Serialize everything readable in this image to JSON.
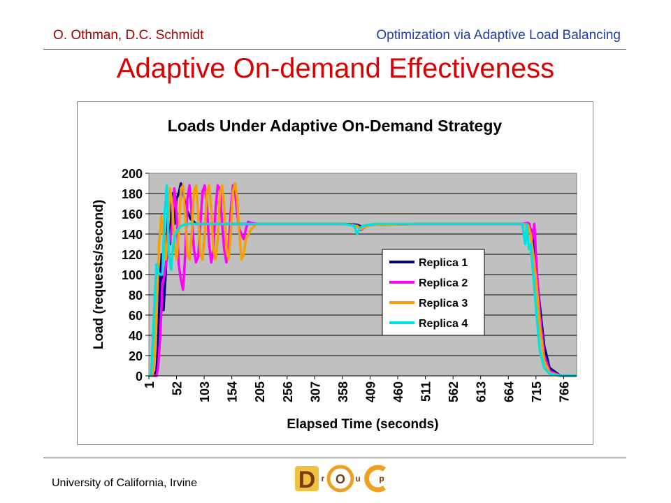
{
  "header": {
    "authors": "O. Othman, D.C. Schmidt",
    "topic": "Optimization via Adaptive Load Balancing"
  },
  "slide_title": "Adaptive On-demand Effectiveness",
  "footer": {
    "institution": "University of California, Irvine",
    "logo_letters": [
      "D",
      "r",
      "O",
      "u",
      "C",
      "p"
    ]
  },
  "colors": {
    "author_text": "#a00000",
    "topic_text": "#1f3f9f",
    "title_text": "#d80000",
    "plot_area": "#c0c0c0",
    "replica1": "#000080",
    "replica2": "#ff00ff",
    "replica3": "#f5a000",
    "replica4": "#00e0e0"
  },
  "chart_data": {
    "type": "line",
    "title": "Loads Under Adaptive On-Demand Strategy",
    "xlabel": "Elapsed Time (seconds)",
    "ylabel": "Load (requests/second)",
    "ylim": [
      0,
      200
    ],
    "xlim": [
      1,
      790
    ],
    "yticks": [
      0,
      20,
      40,
      60,
      80,
      100,
      120,
      140,
      160,
      180,
      200
    ],
    "xticks": [
      1,
      52,
      103,
      154,
      205,
      256,
      307,
      358,
      409,
      460,
      511,
      562,
      613,
      664,
      715,
      766
    ],
    "grid": "horizontal",
    "legend": "inside-right",
    "series": [
      {
        "name": "Replica 1",
        "x": [
          1,
          10,
          15,
          18,
          22,
          25,
          28,
          32,
          36,
          40,
          44,
          48,
          52,
          56,
          60,
          64,
          70,
          78,
          88,
          100,
          120,
          150,
          180,
          200,
          260,
          360,
          385,
          395,
          410,
          500,
          600,
          690,
          700,
          705,
          712,
          720,
          730,
          740,
          760,
          790
        ],
        "y": [
          0,
          0,
          5,
          30,
          100,
          120,
          65,
          100,
          160,
          130,
          180,
          150,
          175,
          180,
          190,
          180,
          165,
          155,
          150,
          150,
          150,
          150,
          150,
          150,
          150,
          150,
          149,
          147,
          149,
          150,
          150,
          150,
          149,
          145,
          130,
          80,
          30,
          8,
          0,
          0
        ]
      },
      {
        "name": "Replica 2",
        "x": [
          1,
          15,
          18,
          22,
          26,
          30,
          35,
          40,
          44,
          48,
          52,
          56,
          60,
          64,
          68,
          72,
          76,
          80,
          84,
          88,
          92,
          96,
          100,
          104,
          108,
          112,
          116,
          120,
          124,
          128,
          132,
          136,
          140,
          144,
          148,
          152,
          156,
          160,
          164,
          168,
          172,
          176,
          180,
          184,
          190,
          200,
          220,
          260,
          360,
          385,
          392,
          400,
          410,
          500,
          600,
          690,
          700,
          703,
          708,
          712,
          716,
          722,
          730,
          740,
          760,
          790
        ],
        "y": [
          0,
          0,
          8,
          40,
          90,
          100,
          120,
          135,
          150,
          185,
          160,
          110,
          95,
          85,
          120,
          175,
          188,
          160,
          125,
          112,
          118,
          150,
          182,
          188,
          170,
          130,
          112,
          125,
          165,
          188,
          185,
          150,
          125,
          112,
          125,
          162,
          188,
          182,
          160,
          145,
          140,
          135,
          145,
          152,
          151,
          150,
          150,
          150,
          150,
          148,
          144,
          147,
          149,
          150,
          150,
          150,
          151,
          150,
          135,
          150,
          110,
          60,
          20,
          5,
          0,
          0
        ]
      },
      {
        "name": "Replica 3",
        "x": [
          1,
          8,
          12,
          16,
          20,
          24,
          28,
          32,
          36,
          40,
          44,
          48,
          52,
          56,
          60,
          64,
          68,
          72,
          76,
          80,
          84,
          88,
          92,
          96,
          100,
          104,
          108,
          112,
          116,
          120,
          124,
          128,
          132,
          136,
          140,
          144,
          148,
          152,
          156,
          160,
          164,
          168,
          172,
          176,
          180,
          190,
          200,
          260,
          360,
          385,
          392,
          400,
          410,
          500,
          600,
          690,
          700,
          705,
          710,
          716,
          722,
          730,
          740,
          760,
          790
        ],
        "y": [
          0,
          0,
          20,
          80,
          130,
          158,
          140,
          115,
          140,
          185,
          170,
          130,
          115,
          140,
          185,
          188,
          160,
          120,
          115,
          140,
          182,
          188,
          160,
          120,
          115,
          140,
          182,
          188,
          165,
          125,
          115,
          135,
          180,
          188,
          165,
          125,
          115,
          140,
          182,
          190,
          175,
          140,
          115,
          120,
          135,
          145,
          150,
          150,
          150,
          148,
          145,
          147,
          149,
          150,
          150,
          150,
          149,
          140,
          120,
          90,
          50,
          15,
          3,
          0,
          0
        ]
      },
      {
        "name": "Replica 4",
        "x": [
          1,
          5,
          9,
          12,
          15,
          18,
          22,
          26,
          30,
          34,
          38,
          42,
          46,
          50,
          55,
          60,
          66,
          72,
          80,
          90,
          100,
          120,
          150,
          180,
          200,
          260,
          360,
          380,
          385,
          390,
          396,
          405,
          420,
          500,
          600,
          690,
          695,
          698,
          702,
          705,
          710,
          716,
          722,
          730,
          740,
          760,
          790
        ],
        "y": [
          0,
          0,
          40,
          80,
          110,
          102,
          100,
          100,
          160,
          188,
          120,
          105,
          130,
          140,
          145,
          148,
          149,
          150,
          150,
          150,
          150,
          150,
          150,
          150,
          150,
          150,
          150,
          148,
          140,
          146,
          148,
          149,
          150,
          150,
          150,
          150,
          130,
          150,
          125,
          130,
          100,
          60,
          25,
          8,
          2,
          0,
          0
        ]
      }
    ]
  }
}
